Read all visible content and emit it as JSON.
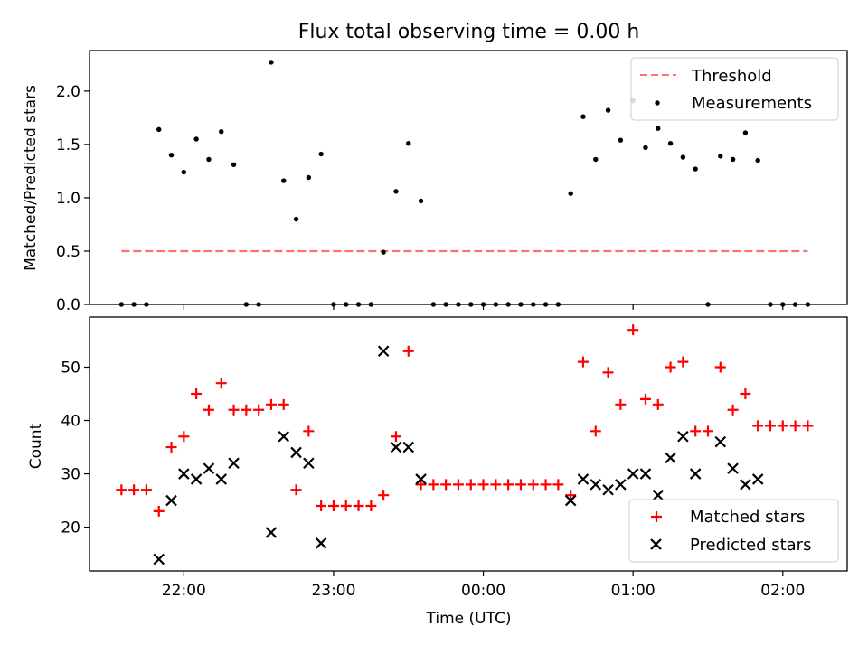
{
  "chart_data": [
    {
      "type": "scatter",
      "title": "Flux total observing time = 0.00 h",
      "xlabel": "",
      "ylabel": "Matched/Predicted stars",
      "ylim": [
        0,
        2.38
      ],
      "yticks": [
        0.0,
        0.5,
        1.0,
        1.5,
        2.0
      ],
      "ytick_labels": [
        "0.0",
        "0.5",
        "1.0",
        "1.5",
        "2.0"
      ],
      "xlim_hours": [
        21.37,
        26.43
      ],
      "xticks_hours": [
        22,
        23,
        24,
        25,
        26
      ],
      "legend": {
        "placement": "upper right",
        "entries": [
          "Threshold",
          "Measurements"
        ]
      },
      "threshold": {
        "name": "Threshold",
        "value": 0.5,
        "x_start": "21:35",
        "x_end": "02:10",
        "style": "dashed",
        "color": "#ff7070"
      },
      "series": [
        {
          "name": "Measurements",
          "color": "#000000",
          "marker": "dot",
          "points": [
            [
              "21:35",
              0.0
            ],
            [
              "21:40",
              0.0
            ],
            [
              "21:45",
              0.0
            ],
            [
              "21:50",
              1.64
            ],
            [
              "21:55",
              1.4
            ],
            [
              "22:00",
              1.24
            ],
            [
              "22:05",
              1.55
            ],
            [
              "22:10",
              1.36
            ],
            [
              "22:15",
              1.62
            ],
            [
              "22:20",
              1.31
            ],
            [
              "22:25",
              0.0
            ],
            [
              "22:30",
              0.0
            ],
            [
              "22:35",
              2.27
            ],
            [
              "22:40",
              1.16
            ],
            [
              "22:45",
              0.8
            ],
            [
              "22:50",
              1.19
            ],
            [
              "22:55",
              1.41
            ],
            [
              "23:00",
              0.0
            ],
            [
              "23:05",
              0.0
            ],
            [
              "23:10",
              0.0
            ],
            [
              "23:15",
              0.0
            ],
            [
              "23:20",
              0.49
            ],
            [
              "23:25",
              1.06
            ],
            [
              "23:30",
              1.51
            ],
            [
              "23:35",
              0.97
            ],
            [
              "23:40",
              0.0
            ],
            [
              "23:45",
              0.0
            ],
            [
              "23:50",
              0.0
            ],
            [
              "23:55",
              0.0
            ],
            [
              "00:00",
              0.0
            ],
            [
              "00:05",
              0.0
            ],
            [
              "00:10",
              0.0
            ],
            [
              "00:15",
              0.0
            ],
            [
              "00:20",
              0.0
            ],
            [
              "00:25",
              0.0
            ],
            [
              "00:30",
              0.0
            ],
            [
              "00:35",
              1.04
            ],
            [
              "00:40",
              1.76
            ],
            [
              "00:45",
              1.36
            ],
            [
              "00:50",
              1.82
            ],
            [
              "00:55",
              1.54
            ],
            [
              "01:00",
              1.91
            ],
            [
              "01:05",
              1.47
            ],
            [
              "01:10",
              1.65
            ],
            [
              "01:15",
              1.51
            ],
            [
              "01:20",
              1.38
            ],
            [
              "01:25",
              1.27
            ],
            [
              "01:30",
              0.0
            ],
            [
              "01:35",
              1.39
            ],
            [
              "01:40",
              1.36
            ],
            [
              "01:45",
              1.61
            ],
            [
              "01:50",
              1.35
            ],
            [
              "01:55",
              0.0
            ],
            [
              "02:00",
              0.0
            ],
            [
              "02:05",
              0.0
            ],
            [
              "02:10",
              0.0
            ]
          ]
        }
      ]
    },
    {
      "type": "scatter",
      "title": "",
      "xlabel": "Time (UTC)",
      "ylabel": "Count",
      "ylim": [
        11.8,
        59.4
      ],
      "yticks": [
        20,
        30,
        40,
        50
      ],
      "ytick_labels": [
        "20",
        "30",
        "40",
        "50"
      ],
      "xlim_hours": [
        21.37,
        26.43
      ],
      "xticks_hours": [
        22,
        23,
        24,
        25,
        26
      ],
      "xtick_labels": [
        "22:00",
        "23:00",
        "00:00",
        "01:00",
        "02:00"
      ],
      "legend": {
        "placement": "lower right",
        "entries": [
          "Matched stars",
          "Predicted stars"
        ]
      },
      "series": [
        {
          "name": "Matched stars",
          "color": "#ff0000",
          "marker": "plus",
          "points": [
            [
              "21:35",
              27
            ],
            [
              "21:40",
              27
            ],
            [
              "21:45",
              27
            ],
            [
              "21:50",
              23
            ],
            [
              "21:55",
              35
            ],
            [
              "22:00",
              37
            ],
            [
              "22:05",
              45
            ],
            [
              "22:10",
              42
            ],
            [
              "22:15",
              47
            ],
            [
              "22:20",
              42
            ],
            [
              "22:25",
              42
            ],
            [
              "22:30",
              42
            ],
            [
              "22:35",
              43
            ],
            [
              "22:40",
              43
            ],
            [
              "22:45",
              27
            ],
            [
              "22:50",
              38
            ],
            [
              "22:55",
              24
            ],
            [
              "23:00",
              24
            ],
            [
              "23:05",
              24
            ],
            [
              "23:10",
              24
            ],
            [
              "23:15",
              24
            ],
            [
              "23:20",
              26
            ],
            [
              "23:25",
              37
            ],
            [
              "23:30",
              53
            ],
            [
              "23:35",
              28
            ],
            [
              "23:40",
              28
            ],
            [
              "23:45",
              28
            ],
            [
              "23:50",
              28
            ],
            [
              "23:55",
              28
            ],
            [
              "00:00",
              28
            ],
            [
              "00:05",
              28
            ],
            [
              "00:10",
              28
            ],
            [
              "00:15",
              28
            ],
            [
              "00:20",
              28
            ],
            [
              "00:25",
              28
            ],
            [
              "00:30",
              28
            ],
            [
              "00:35",
              26
            ],
            [
              "00:40",
              51
            ],
            [
              "00:45",
              38
            ],
            [
              "00:50",
              49
            ],
            [
              "00:55",
              43
            ],
            [
              "01:00",
              57
            ],
            [
              "01:05",
              44
            ],
            [
              "01:10",
              43
            ],
            [
              "01:15",
              50
            ],
            [
              "01:20",
              51
            ],
            [
              "01:25",
              38
            ],
            [
              "01:30",
              38
            ],
            [
              "01:35",
              50
            ],
            [
              "01:40",
              42
            ],
            [
              "01:45",
              45
            ],
            [
              "01:50",
              39
            ],
            [
              "01:55",
              39
            ],
            [
              "02:00",
              39
            ],
            [
              "02:05",
              39
            ],
            [
              "02:10",
              39
            ]
          ]
        },
        {
          "name": "Predicted stars",
          "color": "#000000",
          "marker": "x",
          "points": [
            [
              "21:50",
              14
            ],
            [
              "21:55",
              25
            ],
            [
              "22:00",
              30
            ],
            [
              "22:05",
              29
            ],
            [
              "22:10",
              31
            ],
            [
              "22:15",
              29
            ],
            [
              "22:20",
              32
            ],
            [
              "22:35",
              19
            ],
            [
              "22:40",
              37
            ],
            [
              "22:45",
              34
            ],
            [
              "22:50",
              32
            ],
            [
              "22:55",
              17
            ],
            [
              "23:20",
              53
            ],
            [
              "23:25",
              35
            ],
            [
              "23:30",
              35
            ],
            [
              "23:35",
              29
            ],
            [
              "00:35",
              25
            ],
            [
              "00:40",
              29
            ],
            [
              "00:45",
              28
            ],
            [
              "00:50",
              27
            ],
            [
              "00:55",
              28
            ],
            [
              "01:00",
              30
            ],
            [
              "01:05",
              30
            ],
            [
              "01:10",
              26
            ],
            [
              "01:15",
              33
            ],
            [
              "01:20",
              37
            ],
            [
              "01:25",
              30
            ],
            [
              "01:35",
              36
            ],
            [
              "01:40",
              31
            ],
            [
              "01:45",
              28
            ],
            [
              "01:50",
              29
            ]
          ]
        }
      ]
    }
  ]
}
